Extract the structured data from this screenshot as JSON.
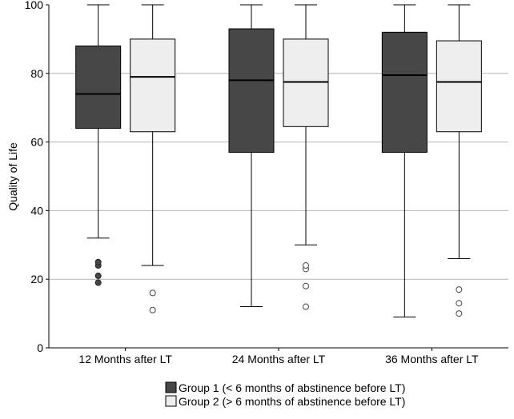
{
  "chart_data": {
    "type": "box",
    "title": "",
    "xlabel": "",
    "ylabel": "Quality of Life",
    "ylim": [
      0,
      100
    ],
    "yticks": [
      "0",
      "20",
      "40",
      "60",
      "80",
      "100"
    ],
    "grid": true,
    "legend_position": "bottom",
    "categories": [
      "12 Months after LT",
      "24 Months after LT",
      "36 Months after LT"
    ],
    "series": [
      {
        "name": "Group 1 (< 6 months of abstinence before LT)",
        "fill": "#474747",
        "outlier_style": "filled",
        "boxes": [
          {
            "min": 32,
            "q1": 64,
            "median": 74,
            "q3": 88,
            "max": 100,
            "outliers": [
              19,
              21,
              24,
              25
            ]
          },
          {
            "min": 12,
            "q1": 57,
            "median": 78,
            "q3": 93,
            "max": 100,
            "outliers": []
          },
          {
            "min": 9,
            "q1": 57,
            "median": 79.5,
            "q3": 92,
            "max": 100,
            "outliers": []
          }
        ]
      },
      {
        "name": "Group 2 (> 6 months of abstinence before LT)",
        "fill": "#eeeeee",
        "outlier_style": "open",
        "boxes": [
          {
            "min": 24,
            "q1": 63,
            "median": 79,
            "q3": 90,
            "max": 100,
            "outliers": [
              11,
              16
            ]
          },
          {
            "min": 30,
            "q1": 64.5,
            "median": 77.5,
            "q3": 90,
            "max": 100,
            "outliers": [
              12,
              18,
              23,
              24
            ]
          },
          {
            "min": 26,
            "q1": 63,
            "median": 77.5,
            "q3": 89.5,
            "max": 100,
            "outliers": [
              10,
              13,
              17
            ]
          }
        ]
      }
    ]
  }
}
